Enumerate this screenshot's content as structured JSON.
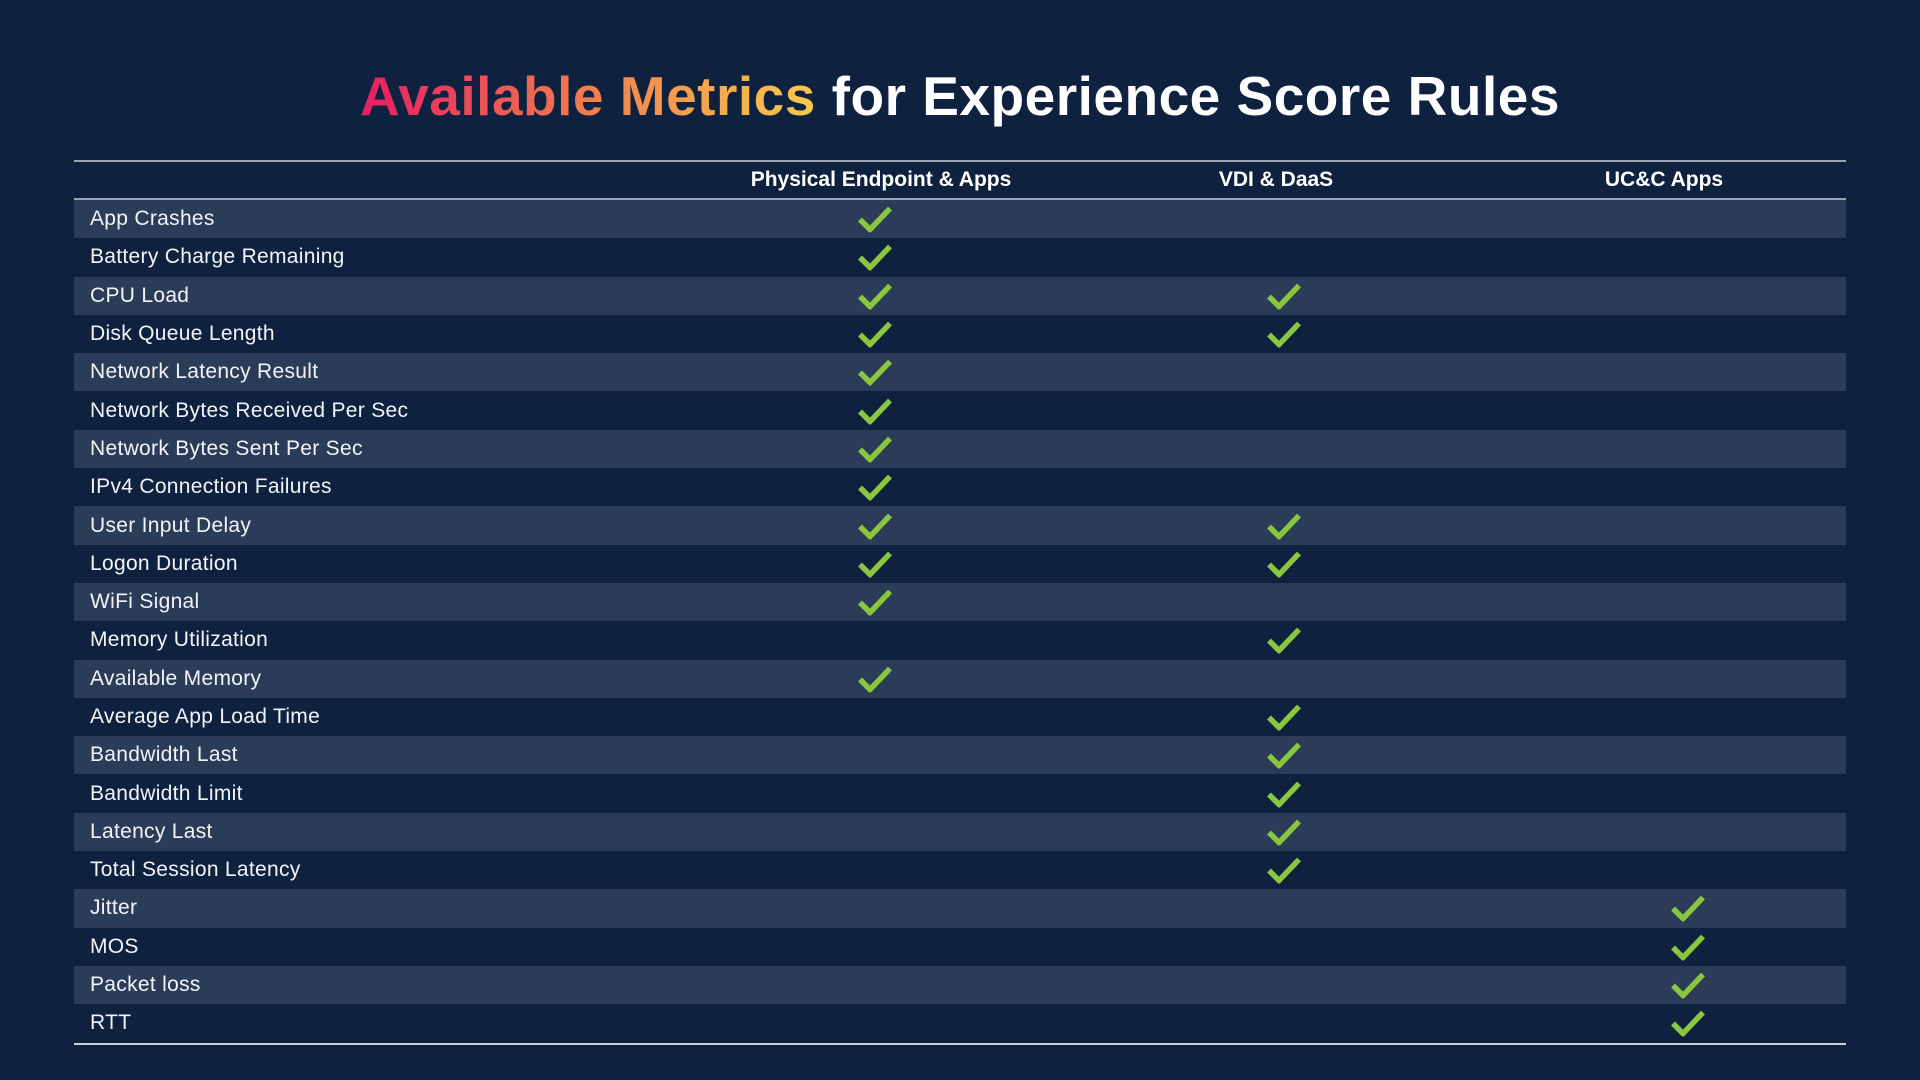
{
  "title": {
    "highlight": "Available Metrics",
    "rest": " for Experience Score Rules"
  },
  "colors": {
    "background": "#0E2240",
    "row_stripe": "#2B3C58",
    "rule_gray": "#9BA1AD",
    "rule_light": "#C9CDD4",
    "check_green": "#8CC63E",
    "title_gradient_start": "#E71D62",
    "title_gradient_mid": "#F0814E",
    "title_gradient_end": "#F8C94E",
    "title_rest_color": "#FFFFFF"
  },
  "table": {
    "columns": [
      "Physical Endpoint & Apps",
      "VDI & DaaS",
      "UC&C Apps"
    ],
    "check_icon": "checkmark",
    "rows": [
      {
        "label": "App Crashes",
        "physical": true,
        "vdi": false,
        "ucc": false
      },
      {
        "label": "Battery Charge Remaining",
        "physical": true,
        "vdi": false,
        "ucc": false
      },
      {
        "label": "CPU Load",
        "physical": true,
        "vdi": true,
        "ucc": false
      },
      {
        "label": "Disk Queue Length",
        "physical": true,
        "vdi": true,
        "ucc": false
      },
      {
        "label": "Network Latency Result",
        "physical": true,
        "vdi": false,
        "ucc": false
      },
      {
        "label": "Network Bytes Received Per Sec",
        "physical": true,
        "vdi": false,
        "ucc": false
      },
      {
        "label": "Network Bytes Sent Per Sec",
        "physical": true,
        "vdi": false,
        "ucc": false
      },
      {
        "label": "IPv4 Connection Failures",
        "physical": true,
        "vdi": false,
        "ucc": false
      },
      {
        "label": "User Input Delay",
        "physical": true,
        "vdi": true,
        "ucc": false
      },
      {
        "label": "Logon Duration",
        "physical": true,
        "vdi": true,
        "ucc": false
      },
      {
        "label": "WiFi Signal",
        "physical": true,
        "vdi": false,
        "ucc": false
      },
      {
        "label": "Memory Utilization",
        "physical": false,
        "vdi": true,
        "ucc": false
      },
      {
        "label": "Available Memory",
        "physical": true,
        "vdi": false,
        "ucc": false
      },
      {
        "label": "Average App Load Time",
        "physical": false,
        "vdi": true,
        "ucc": false
      },
      {
        "label": "Bandwidth Last",
        "physical": false,
        "vdi": true,
        "ucc": false
      },
      {
        "label": "Bandwidth Limit",
        "physical": false,
        "vdi": true,
        "ucc": false
      },
      {
        "label": "Latency Last",
        "physical": false,
        "vdi": true,
        "ucc": false
      },
      {
        "label": "Total Session Latency",
        "physical": false,
        "vdi": true,
        "ucc": false
      },
      {
        "label": "Jitter",
        "physical": false,
        "vdi": false,
        "ucc": true
      },
      {
        "label": "MOS",
        "physical": false,
        "vdi": false,
        "ucc": true
      },
      {
        "label": "Packet loss",
        "physical": false,
        "vdi": false,
        "ucc": true
      },
      {
        "label": "RTT",
        "physical": false,
        "vdi": false,
        "ucc": true
      }
    ]
  }
}
